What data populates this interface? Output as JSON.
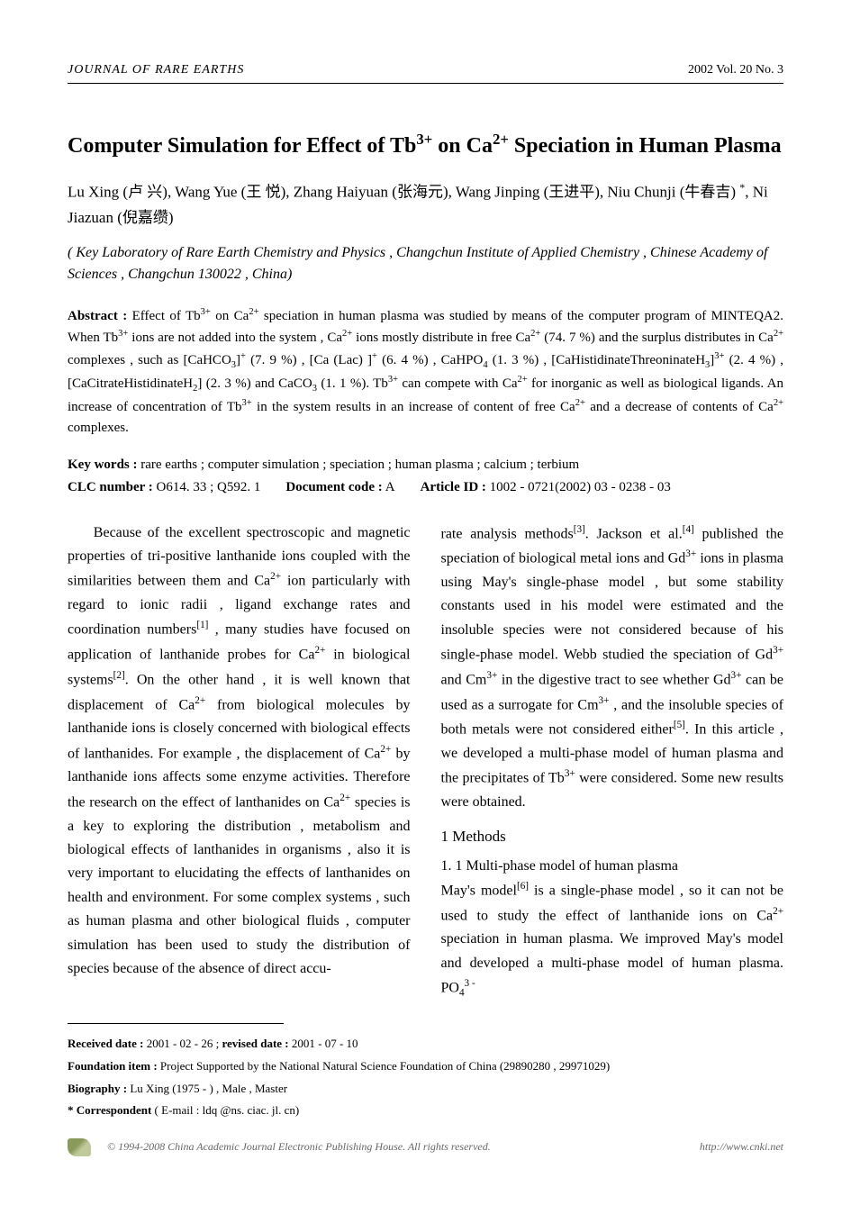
{
  "header": {
    "journal": "JOURNAL OF RARE EARTHS",
    "issue": "2002   Vol. 20   No. 3"
  },
  "title_html": "Computer Simulation for Effect of Tb<sup>3+</sup> on Ca<sup>2+</sup> Speciation in Human Plasma",
  "authors_html": "Lu Xing (卢  兴), Wang Yue (王  悦), Zhang Haiyuan (张海元), Wang Jinping (王进平), Niu Chunji (牛春吉) <sup>*</sup>, Ni Jiazuan (倪嘉缵)",
  "affiliation": "( Key Laboratory of Rare Earth Chemistry and Physics , Changchun Institute of Applied Chemistry , Chinese Academy of Sciences , Changchun 130022 , China)",
  "abstract": {
    "label": "Abstract :",
    "text_html": "Effect of Tb<sup>3+</sup> on Ca<sup>2+</sup> speciation in human plasma was studied by means of the computer program of MINTEQA2. When Tb<sup>3+</sup> ions are not added into the system , Ca<sup>2+</sup> ions mostly distribute in free Ca<sup>2+</sup> (74. 7 %) and the surplus distributes in Ca<sup>2+</sup> complexes , such as [CaHCO<sub>3</sub>]<sup>+</sup> (7. 9 %) , [Ca (Lac) ]<sup>+</sup> (6. 4 %) , CaHPO<sub>4</sub> (1. 3 %) , [CaHistidinateThreoninateH<sub>3</sub>]<sup>3+</sup> (2. 4 %) , [CaCitrateHistidinateH<sub>2</sub>] (2. 3 %) and CaCO<sub>3</sub> (1. 1 %). Tb<sup>3+</sup> can compete with Ca<sup>2+</sup> for inorganic as well as biological ligands. An increase of concentration of Tb<sup>3+</sup> in the system results in an increase of content of free Ca<sup>2+</sup> and a decrease of contents of Ca<sup>2+</sup> complexes."
  },
  "keywords": {
    "label": "Key words :",
    "text": "rare earths ; computer simulation ; speciation ; human plasma ; calcium ; terbium"
  },
  "clc": {
    "label": "CLC number :",
    "text": "O614. 33 ; Q592. 1"
  },
  "doccode": {
    "label": "Document code :",
    "text": "A"
  },
  "articleid": {
    "label": "Article ID :",
    "text": "1002 - 0721(2002) 03 - 0238 - 03"
  },
  "body": {
    "col1_html": "Because of the excellent spectroscopic and magnetic properties of tri-positive lanthanide ions coupled with the similarities between them and Ca<sup>2+</sup> ion particularly with regard to ionic radii , ligand exchange rates and coordination numbers<sup>[1]</sup> , many studies have focused on application of lanthanide probes for Ca<sup>2+</sup> in biological systems<sup>[2]</sup>. On the other hand , it is well known that displacement of Ca<sup>2+</sup> from biological molecules by lanthanide ions is closely concerned with biological effects of lanthanides. For example , the displacement of Ca<sup>2+</sup> by lanthanide ions affects some enzyme activities. Therefore the research on the effect of lanthanides on Ca<sup>2+</sup> species is a key to exploring the distribution , metabolism and biological effects of lanthanides in organisms , also it is very important to elucidating the effects of lanthanides on health and environment. For some complex systems , such as human plasma and other biological fluids , computer simulation has been used to study the distribution of species because of the absence of direct accu-",
    "col2_p1_html": "rate analysis methods<sup>[3]</sup>. Jackson et al.<sup>[4]</sup> published the speciation of biological metal ions and Gd<sup>3+</sup> ions in plasma using May's single-phase model , but some stability constants used in his model were estimated and the insoluble species were not considered because of his single-phase model. Webb studied the speciation of Gd<sup>3+</sup> and Cm<sup>3+</sup> in the digestive tract to see whether Gd<sup>3+</sup> can be used as a surrogate for Cm<sup>3+</sup> , and the insoluble species of both metals were not considered either<sup>[5]</sup>. In this article , we developed a multi-phase model of human plasma and the precipitates of Tb<sup>3+</sup> were considered. Some new results were obtained.",
    "section1_head": "1   Methods",
    "section11_head": "1. 1   Multi-phase model of human plasma",
    "col2_p2_html": "May's model<sup>[6]</sup> is a single-phase model , so it can not be used to study the effect of lanthanide ions on Ca<sup>2+</sup> speciation in human plasma. We improved May's model and developed a multi-phase model of human plasma. PO<sub>4</sub><sup>3 -</sup>"
  },
  "footnotes": {
    "received_label": "Received date :",
    "received_text": "2001 - 02 - 26 ; ",
    "revised_label": "revised date :",
    "revised_text": "2001 - 07 - 10",
    "foundation_label": "Foundation item :",
    "foundation_text": "Project Supported by the National Natural Science Foundation of China (29890280 , 29971029)",
    "biography_label": "Biography :",
    "biography_text": "Lu Xing (1975 - ) , Male , Master",
    "correspondent_label": "* Correspondent",
    "correspondent_text": "( E-mail : ldq @ns. ciac. jl. cn)"
  },
  "copyright": {
    "text": "© 1994-2008 China Academic Journal Electronic Publishing House. All rights reserved.",
    "url": "http://www.cnki.net"
  }
}
